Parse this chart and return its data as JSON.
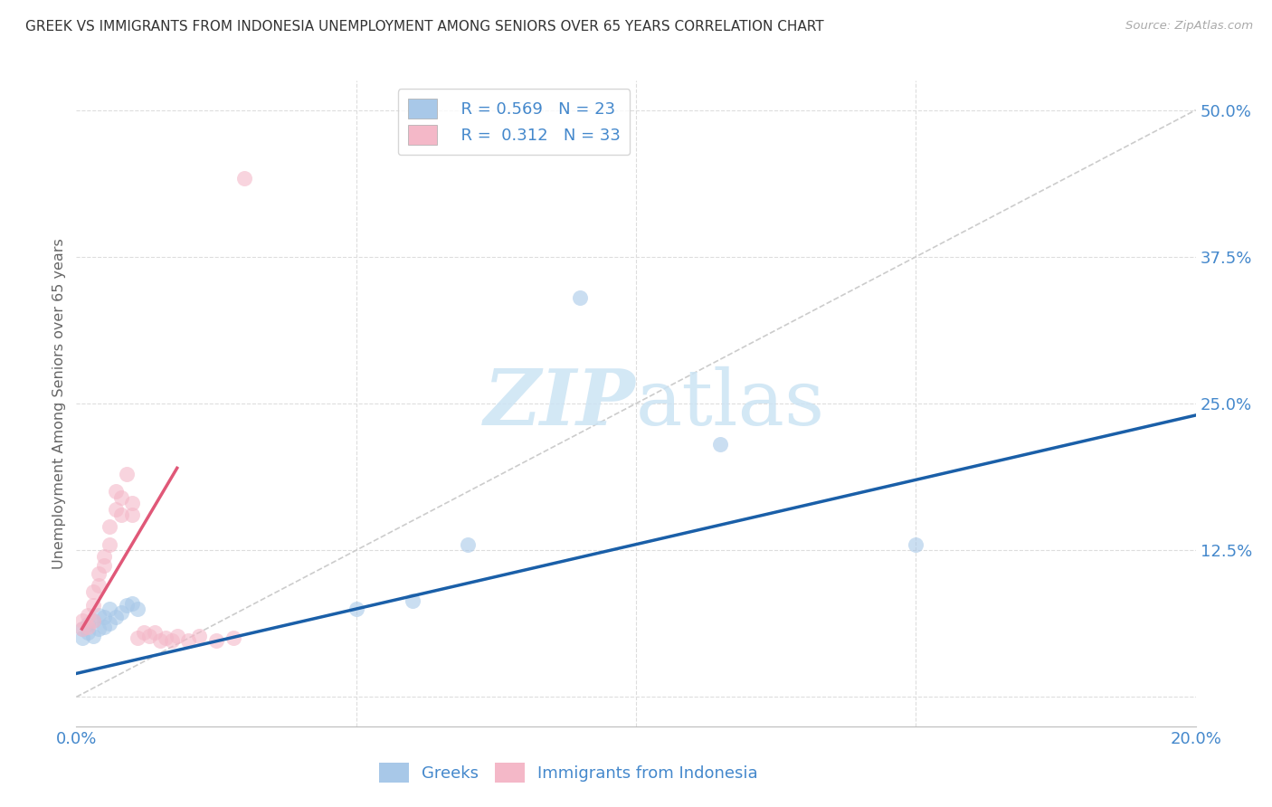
{
  "title": "GREEK VS IMMIGRANTS FROM INDONESIA UNEMPLOYMENT AMONG SENIORS OVER 65 YEARS CORRELATION CHART",
  "source": "Source: ZipAtlas.com",
  "ylabel_label": "Unemployment Among Seniors over 65 years",
  "xlim": [
    0.0,
    0.2
  ],
  "ylim": [
    -0.025,
    0.525
  ],
  "legend_R_blue": "0.569",
  "legend_N_blue": "23",
  "legend_R_pink": "0.312",
  "legend_N_pink": "33",
  "blue_scatter_color": "#a8c8e8",
  "pink_scatter_color": "#f4b8c8",
  "blue_line_color": "#1a5fa8",
  "pink_line_color": "#e05878",
  "diagonal_color": "#cccccc",
  "grid_color": "#dddddd",
  "tick_color": "#4488cc",
  "watermark_color": "#cce4f4",
  "greeks_x": [
    0.001,
    0.001,
    0.002,
    0.002,
    0.003,
    0.003,
    0.004,
    0.004,
    0.005,
    0.005,
    0.006,
    0.006,
    0.007,
    0.008,
    0.009,
    0.01,
    0.011,
    0.05,
    0.06,
    0.07,
    0.09,
    0.115,
    0.15
  ],
  "greeks_y": [
    0.05,
    0.058,
    0.055,
    0.062,
    0.052,
    0.065,
    0.058,
    0.07,
    0.06,
    0.068,
    0.063,
    0.075,
    0.068,
    0.072,
    0.078,
    0.08,
    0.075,
    0.075,
    0.082,
    0.13,
    0.34,
    0.215,
    0.13
  ],
  "indonesia_x": [
    0.001,
    0.001,
    0.002,
    0.002,
    0.003,
    0.003,
    0.003,
    0.004,
    0.004,
    0.005,
    0.005,
    0.006,
    0.006,
    0.007,
    0.007,
    0.008,
    0.008,
    0.009,
    0.01,
    0.01,
    0.011,
    0.012,
    0.013,
    0.014,
    0.015,
    0.016,
    0.017,
    0.018,
    0.02,
    0.022,
    0.025,
    0.028,
    0.03
  ],
  "indonesia_y": [
    0.058,
    0.065,
    0.06,
    0.07,
    0.065,
    0.078,
    0.09,
    0.095,
    0.105,
    0.112,
    0.12,
    0.13,
    0.145,
    0.16,
    0.175,
    0.155,
    0.17,
    0.19,
    0.155,
    0.165,
    0.05,
    0.055,
    0.052,
    0.055,
    0.048,
    0.05,
    0.048,
    0.052,
    0.048,
    0.052,
    0.048,
    0.05,
    0.442
  ],
  "blue_line_x": [
    0.0,
    0.2
  ],
  "blue_line_y": [
    0.02,
    0.24
  ],
  "pink_line_x": [
    0.001,
    0.018
  ],
  "pink_line_y": [
    0.058,
    0.195
  ]
}
